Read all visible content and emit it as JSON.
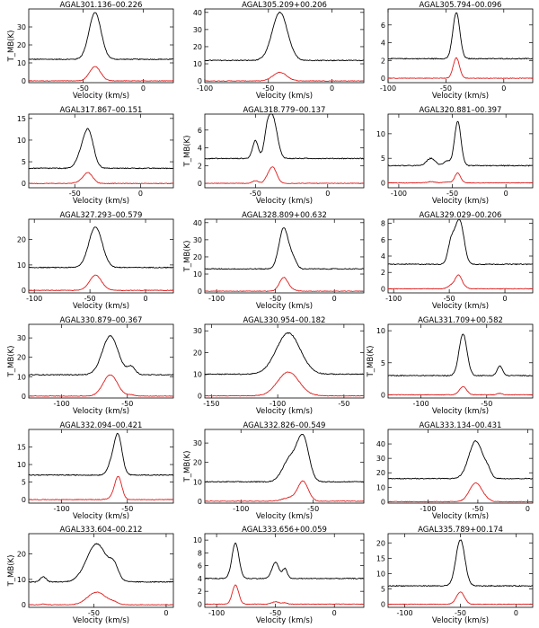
{
  "figure": {
    "colors": {
      "axes": "#000000",
      "upper_spectrum": "#000000",
      "lower_spectrum": "#e01b1b"
    },
    "panels": [
      {
        "title": "AGAL301.136–00.226",
        "xlabel": "Velocity (km/s)",
        "ylabel": "T_MB(K)",
        "xlim": [
          -95,
          25
        ],
        "ylim": [
          -1,
          40
        ],
        "xticks": [
          -50,
          0
        ],
        "yticks": [
          0,
          10,
          20,
          30
        ],
        "peak_v": -40,
        "width": 5,
        "peak_black": 26,
        "offset": 12,
        "peak_red": 8,
        "features": []
      },
      {
        "title": "AGAL305.209+00.206",
        "xlabel": "Velocity (km/s)",
        "ylabel": "",
        "xlim": [
          -100,
          25
        ],
        "ylim": [
          -1,
          42
        ],
        "xticks": [
          -100,
          -50,
          0
        ],
        "yticks": [
          0,
          10,
          20,
          30,
          40
        ],
        "peak_v": -41,
        "width": 6,
        "peak_black": 28,
        "offset": 12,
        "peak_red": 5,
        "features": []
      },
      {
        "title": "AGAL305.794–00.096",
        "xlabel": "Velocity (km/s)",
        "ylabel": "",
        "xlim": [
          -100,
          25
        ],
        "ylim": [
          -0.5,
          7.8
        ],
        "xticks": [
          -100,
          -50,
          0
        ],
        "yticks": [
          0,
          2,
          4,
          6
        ],
        "peak_v": -41,
        "width": 3,
        "peak_black": 5.2,
        "offset": 2.2,
        "peak_red": 2.3,
        "features": []
      },
      {
        "title": "AGAL317.867–00.151",
        "xlabel": "Velocity (km/s)",
        "ylabel": "",
        "xlim": [
          -85,
          25
        ],
        "ylim": [
          -1,
          16
        ],
        "xticks": [
          -50,
          0
        ],
        "yticks": [
          0,
          5,
          10,
          15
        ],
        "peak_v": -40,
        "width": 4,
        "peak_black": 9,
        "offset": 3.5,
        "peak_red": 2.5,
        "features": [
          [
            -47,
            3,
            1.5
          ]
        ]
      },
      {
        "title": "AGAL318.779–00.137",
        "xlabel": "Velocity (km/s)",
        "ylabel": "T_MB(K)",
        "xlim": [
          -85,
          25
        ],
        "ylim": [
          -0.5,
          7.8
        ],
        "xticks": [
          -50,
          0
        ],
        "yticks": [
          0,
          2,
          4,
          6
        ],
        "peak_v": -38,
        "width": 3,
        "peak_black": 4.6,
        "offset": 2.8,
        "peak_red": 1.8,
        "features": [
          [
            -50,
            2,
            2
          ],
          [
            -42,
            2,
            2.2
          ]
        ]
      },
      {
        "title": "AGAL320.881–00.397",
        "xlabel": "Velocity (km/s)",
        "ylabel": "",
        "xlim": [
          -110,
          25
        ],
        "ylim": [
          -1,
          14
        ],
        "xticks": [
          -100,
          -50,
          0
        ],
        "yticks": [
          0,
          5,
          10
        ],
        "peak_v": -45,
        "width": 3,
        "peak_black": 9,
        "offset": 3.5,
        "peak_red": 2,
        "features": [
          [
            -70,
            4,
            1.5
          ],
          [
            -55,
            3,
            1
          ]
        ]
      },
      {
        "title": "AGAL327.293–00.579",
        "xlabel": "Velocity (km/s)",
        "ylabel": "",
        "xlim": [
          -105,
          25
        ],
        "ylim": [
          -1,
          28
        ],
        "xticks": [
          -100,
          -50,
          0
        ],
        "yticks": [
          0,
          10,
          20
        ],
        "peak_v": -45,
        "width": 6,
        "peak_black": 16,
        "offset": 9,
        "peak_red": 6,
        "features": []
      },
      {
        "title": "AGAL328.809+00.632",
        "xlabel": "Velocity (km/s)",
        "ylabel": "T_MB(K)",
        "xlim": [
          -110,
          25
        ],
        "ylim": [
          -1,
          42
        ],
        "xticks": [
          -100,
          -50,
          0
        ],
        "yticks": [
          0,
          10,
          20,
          30,
          40
        ],
        "peak_v": -43,
        "width": 4,
        "peak_black": 24,
        "offset": 13,
        "peak_red": 8,
        "features": [
          [
            -35,
            3,
            5
          ]
        ]
      },
      {
        "title": "AGAL329.029–00.206",
        "xlabel": "Velocity (km/s)",
        "ylabel": "",
        "xlim": [
          -105,
          25
        ],
        "ylim": [
          -0.5,
          8.5
        ],
        "xticks": [
          -100,
          -50,
          0
        ],
        "yticks": [
          0,
          2,
          4,
          6,
          8
        ],
        "peak_v": -42,
        "width": 3,
        "peak_black": 4,
        "offset": 3,
        "peak_red": 1.5,
        "features": [
          [
            -48,
            3,
            3
          ],
          [
            -38,
            3,
            2.5
          ]
        ]
      },
      {
        "title": "AGAL330.879–00.367",
        "xlabel": "Velocity (km/s)",
        "ylabel": "T_MB(K)",
        "xlim": [
          -125,
          -15
        ],
        "ylim": [
          -1,
          37
        ],
        "xticks": [
          -100,
          -50
        ],
        "yticks": [
          0,
          10,
          20,
          30
        ],
        "peak_v": -63,
        "width": 6,
        "peak_black": 20,
        "offset": 11,
        "peak_red": 11,
        "features": [
          [
            -47,
            3,
            4
          ]
        ]
      },
      {
        "title": "AGAL330.954–00.182",
        "xlabel": "Velocity (km/s)",
        "ylabel": "",
        "xlim": [
          -155,
          -35
        ],
        "ylim": [
          -1,
          33
        ],
        "xticks": [
          -150,
          -100,
          -50
        ],
        "yticks": [
          0,
          10,
          20,
          30
        ],
        "peak_v": -92,
        "width": 9,
        "peak_black": 19,
        "offset": 10,
        "peak_red": 11,
        "features": []
      },
      {
        "title": "AGAL331.709+00.582",
        "xlabel": "Velocity (km/s)",
        "ylabel": "T_MB(K)",
        "xlim": [
          -125,
          -15
        ],
        "ylim": [
          -0.5,
          11
        ],
        "xticks": [
          -100,
          -50
        ],
        "yticks": [
          0,
          5,
          10
        ],
        "peak_v": -68,
        "width": 3,
        "peak_black": 6.5,
        "offset": 3,
        "peak_red": 1.3,
        "features": [
          [
            -40,
            2,
            1.5
          ]
        ]
      },
      {
        "title": "AGAL332.094–00.421",
        "xlabel": "Velocity (km/s)",
        "ylabel": "",
        "xlim": [
          -125,
          -15
        ],
        "ylim": [
          -1,
          20
        ],
        "xticks": [
          -100,
          -50
        ],
        "yticks": [
          0,
          5,
          10,
          15
        ],
        "peak_v": -57,
        "width": 3,
        "peak_black": 11,
        "offset": 7,
        "peak_red": 6.5,
        "features": [
          [
            -62,
            3,
            3
          ]
        ]
      },
      {
        "title": "AGAL332.826–00.549",
        "xlabel": "Velocity (km/s)",
        "ylabel": "T_MB(K)",
        "xlim": [
          -125,
          -15
        ],
        "ylim": [
          -1,
          37
        ],
        "xticks": [
          -100,
          -50
        ],
        "yticks": [
          0,
          10,
          20,
          30
        ],
        "peak_v": -57,
        "width": 4,
        "peak_black": 22,
        "offset": 10,
        "peak_red": 10,
        "features": [
          [
            -66,
            5,
            12
          ]
        ]
      },
      {
        "title": "AGAL333.134–00.431",
        "xlabel": "Velocity (km/s)",
        "ylabel": "",
        "xlim": [
          -140,
          5
        ],
        "ylim": [
          -1,
          50
        ],
        "xticks": [
          -100,
          -50,
          0
        ],
        "yticks": [
          0,
          10,
          20,
          30,
          40
        ],
        "peak_v": -52,
        "width": 7,
        "peak_black": 26,
        "offset": 16,
        "peak_red": 13,
        "features": [
          [
            -40,
            3,
            4
          ]
        ]
      },
      {
        "title": "AGAL333.604–00.212",
        "xlabel": "Velocity (km/s)",
        "ylabel": "T_MB(K)",
        "xlim": [
          -95,
          5
        ],
        "ylim": [
          -1,
          28
        ],
        "xticks": [
          -50,
          0
        ],
        "yticks": [
          0,
          10,
          20
        ],
        "peak_v": -48,
        "width": 7,
        "peak_black": 15,
        "offset": 9,
        "peak_red": 5,
        "features": [
          [
            -36,
            3,
            5
          ],
          [
            -85,
            2,
            2
          ]
        ]
      },
      {
        "title": "AGAL333.656+00.059",
        "xlabel": "Velocity (km/s)",
        "ylabel": "",
        "xlim": [
          -110,
          25
        ],
        "ylim": [
          -0.5,
          11
        ],
        "xticks": [
          -100,
          -50,
          0
        ],
        "yticks": [
          0,
          2,
          4,
          6,
          8,
          10
        ],
        "peak_v": -84,
        "width": 3,
        "peak_black": 5.5,
        "offset": 4,
        "peak_red": 3,
        "features": [
          [
            -50,
            3,
            2.5
          ],
          [
            -42,
            2,
            1.5
          ]
        ]
      },
      {
        "title": "AGAL335.789+00.174",
        "xlabel": "Velocity (km/s)",
        "ylabel": "",
        "xlim": [
          -115,
          15
        ],
        "ylim": [
          -1,
          23
        ],
        "xticks": [
          -100,
          -50,
          0
        ],
        "yticks": [
          0,
          5,
          10,
          15,
          20
        ],
        "peak_v": -50,
        "width": 4,
        "peak_black": 15,
        "offset": 6,
        "peak_red": 4,
        "features": []
      }
    ]
  }
}
